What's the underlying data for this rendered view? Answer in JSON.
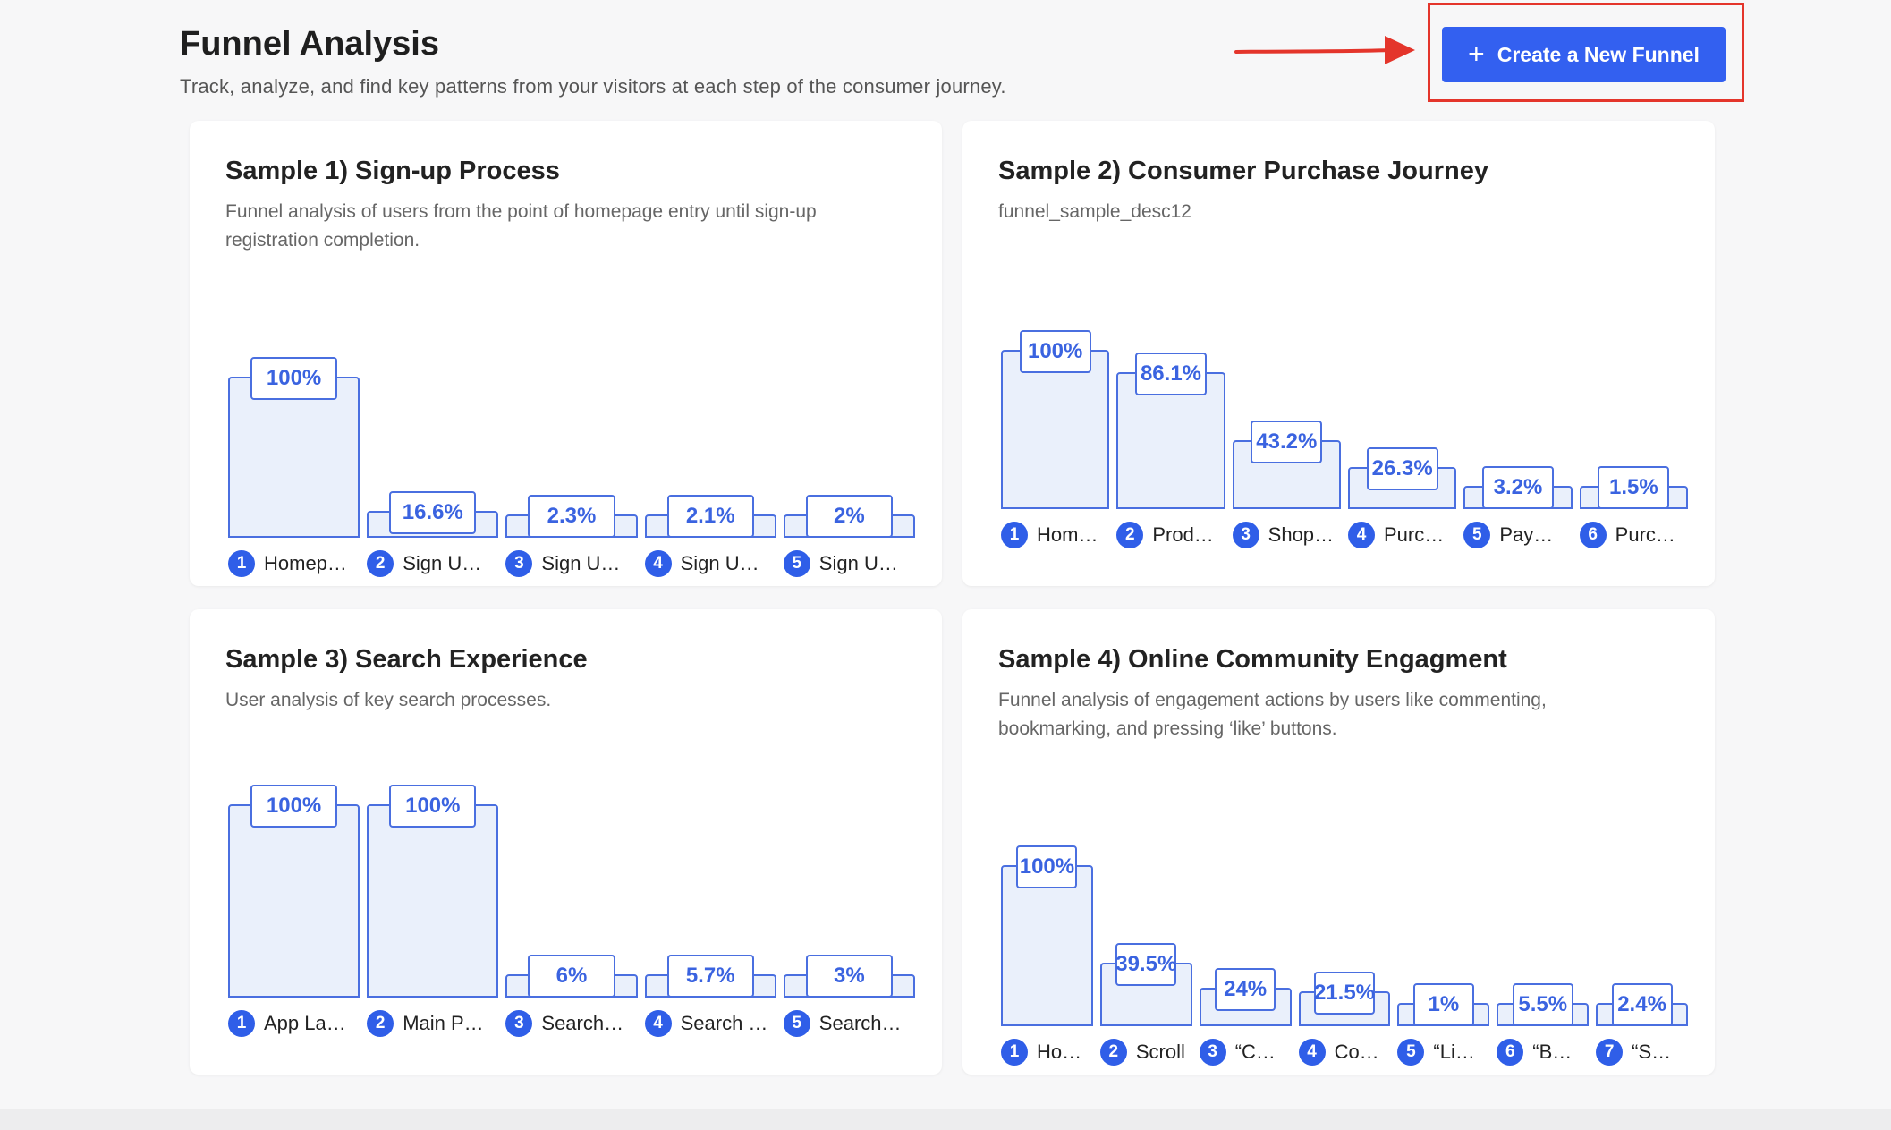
{
  "header": {
    "title": "Funnel Analysis",
    "subtitle": "Track, analyze, and find key patterns from your visitors at each step of the consumer journey.",
    "create_button_label": "Create a New Funnel",
    "create_button_icon": "plus-icon",
    "annotation_color": "#e4352b",
    "accent_color": "#3360f0"
  },
  "cards": [
    {
      "title": "Sample 1) Sign-up Process",
      "description": "Funnel analysis of users from the point of homepage entry until sign-up registration completion.",
      "chart_data": {
        "type": "bar",
        "categories": [
          "Homep…",
          "Sign U…",
          "Sign U…",
          "Sign U…",
          "Sign U…"
        ],
        "values": [
          100,
          16.6,
          2.3,
          2.1,
          2
        ],
        "labels": [
          "100%",
          "16.6%",
          "2.3%",
          "2.1%",
          "2%"
        ],
        "ylim": [
          0,
          100
        ]
      }
    },
    {
      "title": "Sample 2) Consumer Purchase Journey",
      "description": "funnel_sample_desc12",
      "chart_data": {
        "type": "bar",
        "categories": [
          "Hom…",
          "Prod…",
          "Shop…",
          "Purc…",
          "Pay…",
          "Purc…"
        ],
        "values": [
          100,
          86.1,
          43.2,
          26.3,
          3.2,
          1.5
        ],
        "labels": [
          "100%",
          "86.1%",
          "43.2%",
          "26.3%",
          "3.2%",
          "1.5%"
        ],
        "ylim": [
          0,
          100
        ]
      }
    },
    {
      "title": "Sample 3) Search Experience",
      "description": "User analysis of key search processes.",
      "chart_data": {
        "type": "bar",
        "categories": [
          "App La…",
          "Main P…",
          "Search…",
          "Search …",
          "Search…"
        ],
        "values": [
          100,
          100,
          6,
          5.7,
          3
        ],
        "labels": [
          "100%",
          "100%",
          "6%",
          "5.7%",
          "3%"
        ],
        "ylim": [
          0,
          100
        ]
      }
    },
    {
      "title": "Sample 4) Online Community Engagment",
      "description": "Funnel analysis of engagement actions by users like commenting, bookmarking, and pressing ‘like’ buttons.",
      "chart_data": {
        "type": "bar",
        "categories": [
          "Ho…",
          "Scroll",
          "“C…",
          "Co…",
          "“Li…",
          "“B…",
          "“S…"
        ],
        "values": [
          100,
          39.5,
          24,
          21.5,
          1,
          5.5,
          2.4
        ],
        "labels": [
          "100%",
          "39.5%",
          "24%",
          "21.5%",
          "1%",
          "5.5%",
          "2.4%"
        ],
        "ylim": [
          0,
          100
        ]
      }
    }
  ]
}
